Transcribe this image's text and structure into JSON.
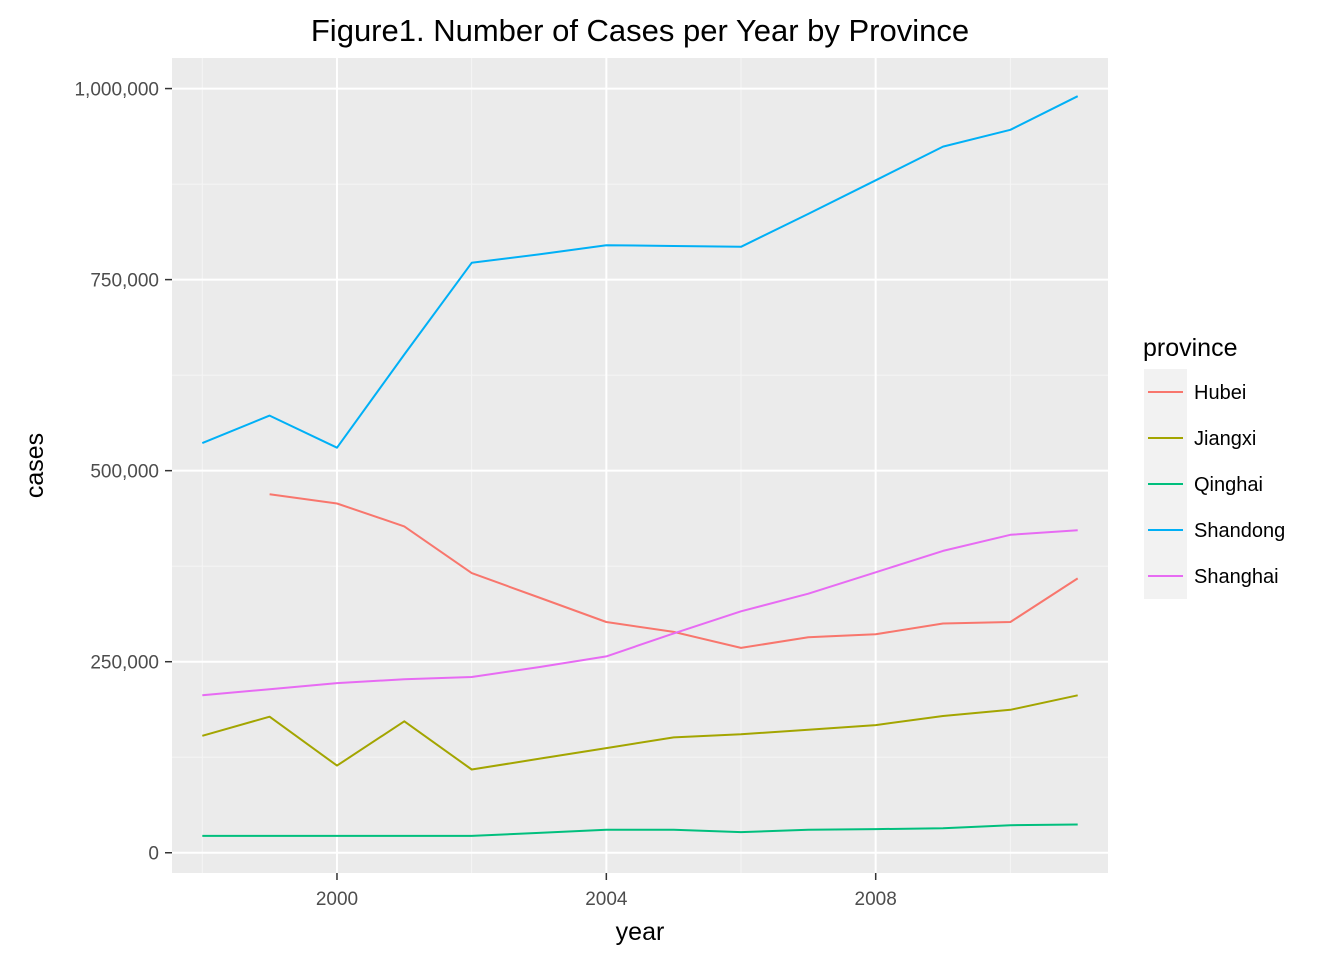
{
  "chart_data": {
    "type": "line",
    "title": "Figure1. Number of Cases per Year by Province",
    "xlabel": "year",
    "ylabel": "cases",
    "xlim": [
      1997.55,
      2011.45
    ],
    "ylim": [
      -26500,
      1040000
    ],
    "x_ticks": [
      2000,
      2004,
      2008
    ],
    "x_tick_labels": [
      "2000",
      "2004",
      "2008"
    ],
    "y_ticks": [
      0,
      250000,
      500000,
      750000,
      1000000
    ],
    "y_tick_labels": [
      "0",
      "250,000",
      "500,000",
      "750,000",
      "1,000,000"
    ],
    "grid": true,
    "legend": {
      "title": "province",
      "position": "right"
    },
    "series": [
      {
        "name": "Hubei",
        "color": "#F8766D",
        "x": [
          1999,
          2000,
          2001,
          2002,
          2003,
          2004,
          2005,
          2006,
          2007,
          2008,
          2009,
          2010,
          2011
        ],
        "y": [
          469000,
          457000,
          427000,
          366000,
          334000,
          302000,
          289000,
          268000,
          282000,
          286000,
          300000,
          302000,
          359000
        ]
      },
      {
        "name": "Jiangxi",
        "color": "#A3A500",
        "x": [
          1998,
          1999,
          2000,
          2001,
          2002,
          2003,
          2004,
          2005,
          2006,
          2007,
          2008,
          2009,
          2010,
          2011
        ],
        "y": [
          153000,
          178000,
          114000,
          172000,
          109000,
          123000,
          137000,
          151000,
          155000,
          161000,
          167000,
          179000,
          187000,
          206000
        ]
      },
      {
        "name": "Qinghai",
        "color": "#00BF7D",
        "x": [
          1998,
          1999,
          2000,
          2001,
          2002,
          2003,
          2004,
          2005,
          2006,
          2007,
          2008,
          2009,
          2010,
          2011
        ],
        "y": [
          22000,
          22000,
          22000,
          22000,
          22000,
          26000,
          30000,
          30000,
          27000,
          30000,
          31000,
          32000,
          36000,
          37000
        ]
      },
      {
        "name": "Shandong",
        "color": "#00B0F6",
        "x": [
          1998,
          1999,
          2000,
          2001,
          2002,
          2003,
          2004,
          2005,
          2006,
          2007,
          2008,
          2009,
          2010,
          2011
        ],
        "y": [
          536000,
          572000,
          530000,
          652000,
          772000,
          783000,
          795000,
          794000,
          793000,
          836000,
          880000,
          924000,
          946000,
          990000
        ]
      },
      {
        "name": "Shanghai",
        "color": "#E76BF3",
        "x": [
          1998,
          1999,
          2000,
          2001,
          2002,
          2003,
          2004,
          2005,
          2006,
          2007,
          2008,
          2009,
          2010,
          2011
        ],
        "y": [
          206000,
          214000,
          222000,
          227000,
          230000,
          243000,
          257000,
          287000,
          316000,
          339000,
          367000,
          395000,
          416000,
          422000
        ]
      }
    ]
  }
}
